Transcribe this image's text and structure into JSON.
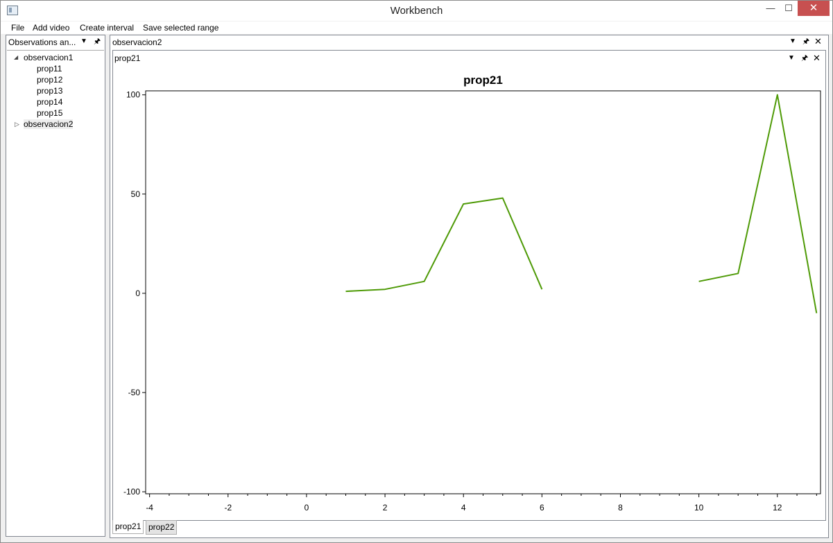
{
  "window": {
    "title": "Workbench",
    "minimize_glyph": "—",
    "maximize_glyph": "☐",
    "close_glyph": "✕"
  },
  "menu": {
    "items": [
      "File",
      "Add video",
      "Create interval",
      "Save selected range"
    ]
  },
  "left_panel": {
    "title": "Observations an...",
    "tree": [
      {
        "label": "observacion1",
        "expanded": true,
        "children": [
          "prop11",
          "prop12",
          "prop13",
          "prop14",
          "prop15"
        ]
      },
      {
        "label": "observacion2",
        "expanded": false,
        "selected": true,
        "children": []
      }
    ]
  },
  "right_panel": {
    "title": "observacion2",
    "inner_title": "prop21",
    "tabs": [
      "prop21",
      "prop22"
    ],
    "active_tab": 0
  },
  "icons": {
    "dropdown": "dropdown-arrow-icon",
    "pin": "pin-icon",
    "close": "close-icon"
  },
  "colors": {
    "series": "#4e9a06",
    "close_button": "#c75050"
  },
  "chart_data": {
    "type": "line",
    "title": "prop21",
    "xlabel": "",
    "ylabel": "",
    "xlim": [
      -4.1,
      13.1
    ],
    "ylim": [
      -101,
      102
    ],
    "xticks": [
      -4,
      -2,
      0,
      2,
      4,
      6,
      8,
      10,
      12
    ],
    "yticks": [
      100,
      50,
      0,
      -50,
      -100
    ],
    "grid": false,
    "series": [
      {
        "segments": [
          [
            [
              1,
              1
            ],
            [
              2,
              2
            ],
            [
              3,
              6
            ],
            [
              4,
              45
            ],
            [
              5,
              48
            ],
            [
              6,
              2
            ]
          ],
          [
            [
              10,
              6
            ],
            [
              11,
              10
            ],
            [
              12,
              100
            ],
            [
              13,
              -10
            ]
          ]
        ]
      }
    ]
  }
}
